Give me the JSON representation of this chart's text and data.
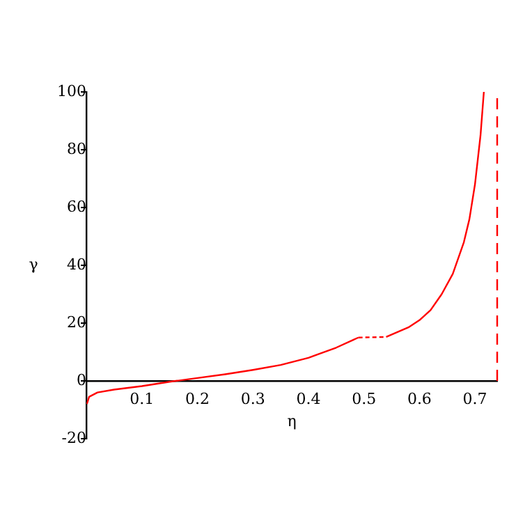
{
  "chart_data": {
    "type": "line",
    "xlabel": "η",
    "ylabel": "γ",
    "xlim": [
      0,
      0.74
    ],
    "ylim": [
      -20,
      100
    ],
    "xticks": [
      0.1,
      0.2,
      0.3,
      0.4,
      0.5,
      0.6,
      0.7
    ],
    "yticks": [
      -20,
      0,
      20,
      40,
      60,
      80,
      100
    ],
    "grid": false,
    "legend": false,
    "marker": "none",
    "series": [
      {
        "color": "#ff0000",
        "line_style": "solid",
        "x": [
          0.001,
          0.005,
          0.02,
          0.05,
          0.1,
          0.15,
          0.2,
          0.25,
          0.3,
          0.35,
          0.4,
          0.45,
          0.49
        ],
        "values": [
          -8,
          -5.5,
          -4,
          -3,
          -1.8,
          -0.3,
          1,
          2.3,
          3.8,
          5.5,
          8,
          11.5,
          15
        ]
      },
      {
        "color": "#ff0000",
        "line_style": "solid",
        "x": [
          0.54,
          0.58,
          0.6,
          0.62,
          0.64,
          0.66,
          0.68,
          0.69,
          0.7,
          0.71,
          0.716
        ],
        "values": [
          15.2,
          18.5,
          21,
          24.5,
          30,
          37,
          48,
          56,
          68,
          85,
          100
        ]
      },
      {
        "color": "#ff0000",
        "line_style": "dotted",
        "x": [
          0.49,
          0.515,
          0.54
        ],
        "values": [
          15,
          15.1,
          15.2
        ]
      }
    ],
    "ref_lines": [
      {
        "axis": "x",
        "value": 0.74,
        "color": "#ff0000",
        "line_style": "dashed"
      }
    ]
  }
}
